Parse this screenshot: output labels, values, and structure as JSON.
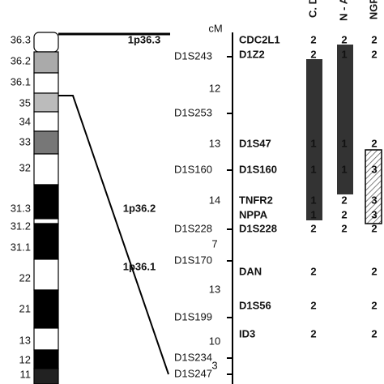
{
  "ideogram": {
    "bands": [
      "36.3",
      "36.2",
      "36.1",
      "35",
      "34",
      "33",
      "32",
      "31.3",
      "31.2",
      "31.1",
      "22",
      "21",
      "13",
      "12",
      "11"
    ],
    "regions": [
      "1p36.3",
      "1p36.2",
      "1p36.1"
    ]
  },
  "map": {
    "unit": "cM",
    "left_markers": [
      "D1S243",
      "D1S253",
      "D1S160",
      "D1S228",
      "D1S170",
      "D1S199",
      "D1S234",
      "D1S247"
    ],
    "distances": [
      "12",
      "13",
      "14",
      "7",
      "13",
      "10",
      "3"
    ],
    "right_markers": [
      "CDC2L1",
      "D1Z2",
      "D1S47",
      "D1S160",
      "TNFR2",
      "NPPA",
      "D1S228",
      "DAN",
      "D1S56",
      "ID3"
    ]
  },
  "columns": [
    {
      "name": "C. D",
      "cells": [
        "2",
        "2",
        "1",
        "1",
        "1",
        "1",
        "2",
        "2",
        "2",
        "2"
      ]
    },
    {
      "name": "N - A",
      "cells": [
        "2",
        "1",
        "1",
        "1",
        "2",
        "2",
        "2",
        null,
        null,
        null
      ]
    },
    {
      "name": "NGP",
      "cells": [
        "2",
        "2",
        "2",
        "3",
        "3",
        "3",
        "2",
        "2",
        "2",
        "2"
      ]
    }
  ]
}
